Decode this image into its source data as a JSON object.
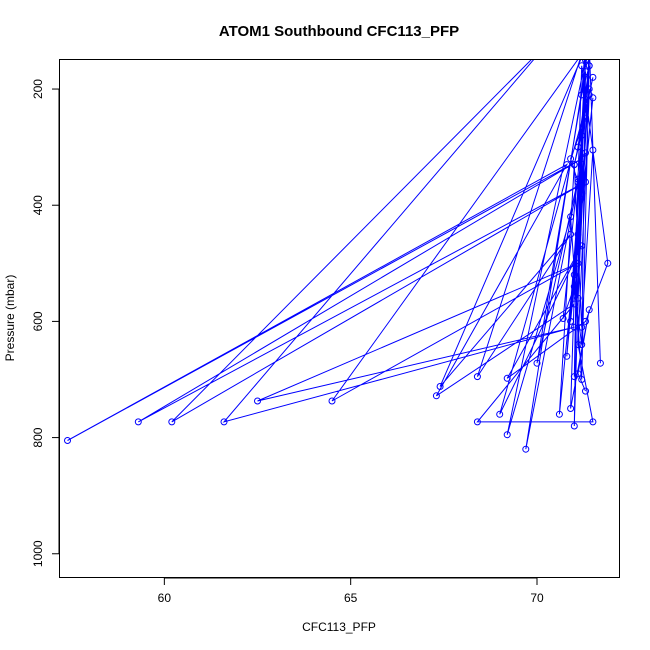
{
  "chart_data": {
    "type": "line",
    "title": "ATOM1 Southbound CFC113_PFP",
    "xlabel": "CFC113_PFP",
    "ylabel": "Pressure (mbar)",
    "xlim": [
      57.2,
      72.2
    ],
    "ylim": [
      1040,
      150
    ],
    "y_reversed": true,
    "x_ticks": [
      60,
      65,
      70
    ],
    "y_ticks": [
      200,
      400,
      600,
      800,
      1000
    ],
    "grid": false,
    "legend": "none",
    "series": [
      {
        "color": "#0000ff",
        "marker": "open-circle",
        "points": [
          [
            71.3,
            120
          ],
          [
            71.2,
            210
          ],
          [
            71.4,
            160
          ],
          [
            71.1,
            300
          ],
          [
            71.5,
            180
          ],
          [
            71.0,
            330
          ],
          [
            71.3,
            250
          ],
          [
            70.9,
            320
          ],
          [
            71.2,
            380
          ],
          [
            71.4,
            200
          ],
          [
            71.1,
            450
          ],
          [
            71.3,
            140
          ],
          [
            71.0,
            520
          ],
          [
            71.5,
            215
          ],
          [
            70.9,
            600
          ],
          [
            71.2,
            280
          ],
          [
            71.1,
            560
          ],
          [
            71.4,
            140
          ],
          [
            70.8,
            660
          ],
          [
            71.3,
            310
          ],
          [
            70.6,
            760
          ],
          [
            71.0,
            330
          ],
          [
            71.2,
            610
          ],
          [
            71.5,
            305
          ],
          [
            71.7,
            672
          ],
          [
            71.4,
            120
          ],
          [
            69.7,
            820
          ],
          [
            71.1,
            360
          ],
          [
            71.0,
            780
          ],
          [
            71.3,
            150
          ],
          [
            69.2,
            795
          ],
          [
            70.9,
            420
          ],
          [
            71.2,
            700
          ],
          [
            71.4,
            160
          ],
          [
            70.7,
            595
          ],
          [
            71.0,
            540
          ],
          [
            71.2,
            640
          ],
          [
            71.3,
            170
          ],
          [
            70.0,
            672
          ],
          [
            71.1,
            355
          ],
          [
            71.0,
            695
          ],
          [
            71.3,
            130
          ],
          [
            67.4,
            712
          ],
          [
            70.9,
            450
          ],
          [
            68.4,
            695
          ],
          [
            71.2,
            140
          ],
          [
            64.5,
            737
          ],
          [
            71.1,
            500
          ],
          [
            62.5,
            737
          ],
          [
            71.0,
            610
          ],
          [
            61.6,
            773
          ],
          [
            70.3,
            120
          ],
          [
            60.2,
            773
          ],
          [
            71.3,
            360
          ],
          [
            59.3,
            773
          ],
          [
            71.2,
            320
          ],
          [
            57.4,
            805
          ],
          [
            70.8,
            330
          ],
          [
            67.3,
            728
          ],
          [
            71.0,
            570
          ],
          [
            68.4,
            773
          ],
          [
            71.5,
            773
          ],
          [
            71.1,
            640
          ],
          [
            71.4,
            210
          ],
          [
            69.0,
            760
          ],
          [
            71.2,
            470
          ],
          [
            69.2,
            698
          ],
          [
            71.3,
            600
          ],
          [
            71.9,
            500
          ],
          [
            71.2,
            160
          ],
          [
            70.9,
            750
          ],
          [
            71.4,
            580
          ],
          [
            71.1,
            690
          ],
          [
            71.3,
            720
          ]
        ]
      }
    ]
  }
}
